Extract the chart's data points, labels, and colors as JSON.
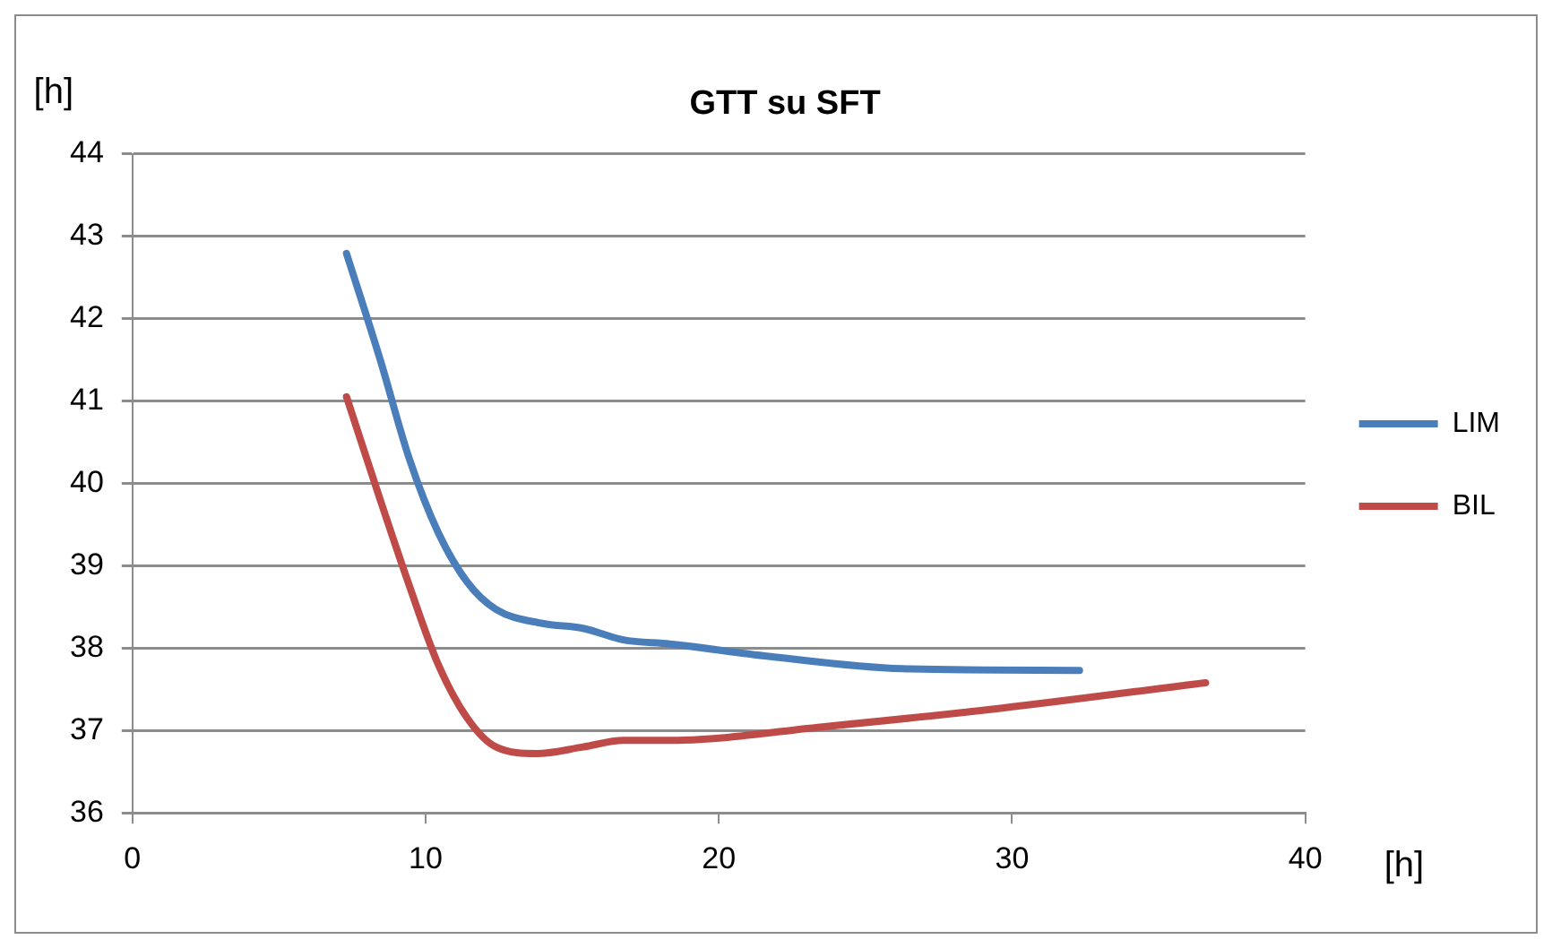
{
  "chart_data": {
    "type": "line",
    "title": "GTT su SFT",
    "xlabel": "[h]",
    "ylabel": "[h]",
    "xlim": [
      0,
      40
    ],
    "xticks": [
      0,
      10,
      20,
      30,
      40
    ],
    "ylim": [
      36,
      44
    ],
    "yticks": [
      36,
      37,
      38,
      39,
      40,
      41,
      42,
      43,
      44
    ],
    "grid": "y",
    "legend": "right",
    "marker": "none",
    "line_style": "solid",
    "series": [
      {
        "name": "LIM",
        "color": "#4a7ebb",
        "x": [
          7.3,
          8.45,
          9.44,
          10.43,
          11.42,
          12.4,
          13.98,
          15.37,
          16.74,
          18.33,
          21.7,
          26.26,
          32.3
        ],
        "values": [
          42.79,
          41.5,
          40.3,
          39.4,
          38.8,
          38.47,
          38.3,
          38.24,
          38.1,
          38.05,
          37.9,
          37.75,
          37.73
        ]
      },
      {
        "name": "BIL",
        "color": "#be4b48",
        "x": [
          7.3,
          8.45,
          9.44,
          10.43,
          11.42,
          12.4,
          13.8,
          15.37,
          16.74,
          18.33,
          23.68,
          29.6,
          36.6
        ],
        "values": [
          41.05,
          39.8,
          38.76,
          37.8,
          37.15,
          36.8,
          36.72,
          36.8,
          36.88,
          36.88,
          37.05,
          37.27,
          37.58
        ]
      }
    ]
  }
}
